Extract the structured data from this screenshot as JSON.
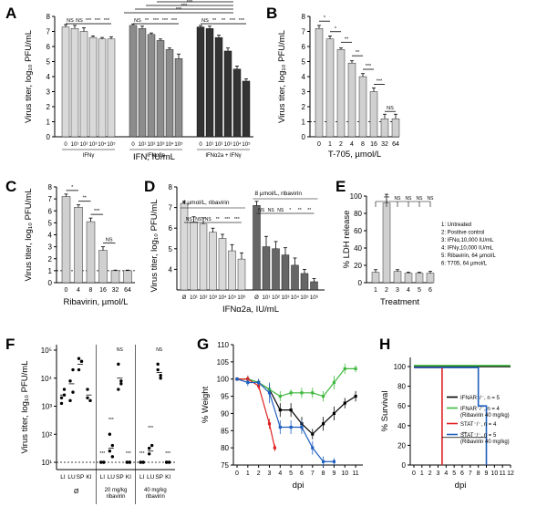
{
  "figure": {
    "panels": [
      {
        "id": "A",
        "letter": "A",
        "ylabel": "Virus titer, log₁₀ PFU/mL",
        "xlabel": "IFN, IU/mL"
      },
      {
        "id": "B",
        "letter": "B",
        "ylabel": "Virus titer, log₁₀ PFU/mL",
        "xlabel": "T-705, µmol/L"
      },
      {
        "id": "C",
        "letter": "C",
        "ylabel": "Virus titer, log₁₀ PFU/mL",
        "xlabel": "Ribavirin, µmol/L"
      },
      {
        "id": "D",
        "letter": "D",
        "ylabel": "Virus titer, log₁₀ PFU/mL",
        "xlabel": "IFNα2a, IU/mL"
      },
      {
        "id": "E",
        "letter": "E",
        "ylabel": "% LDH release",
        "xlabel": "Treatment"
      },
      {
        "id": "F",
        "letter": "F",
        "ylabel": "Virus titer, log₁₀ PFU/mL",
        "xlabel": ""
      },
      {
        "id": "G",
        "letter": "G",
        "ylabel": "% Weight",
        "xlabel": "dpi"
      },
      {
        "id": "H",
        "letter": "H",
        "ylabel": "% Survival",
        "xlabel": "dpi"
      }
    ]
  },
  "chart_data": [
    {
      "panel": "A",
      "type": "bar",
      "ylim": [
        0,
        8
      ],
      "yticks": [
        0,
        1,
        2,
        3,
        4,
        5,
        6,
        7,
        8
      ],
      "ylabel": "Virus titer, log₁₀ PFU/mL",
      "xlabel": "IFN, IU/mL",
      "groups": [
        {
          "name": "IFNγ",
          "color": "#d9d9d9",
          "categories": [
            "0",
            "10¹",
            "10²",
            "10³",
            "10⁴",
            "10⁵"
          ],
          "values": [
            7.3,
            7.2,
            7.0,
            6.6,
            6.5,
            6.5
          ],
          "errors": [
            0.15,
            0.2,
            0.25,
            0.1,
            0.1,
            0.15
          ]
        },
        {
          "name": "IFNα2a",
          "color": "#8c8c8c",
          "categories": [
            "0",
            "10¹",
            "10²",
            "10³",
            "10⁴",
            "10⁵"
          ],
          "values": [
            7.4,
            7.2,
            6.8,
            6.4,
            5.8,
            5.2
          ],
          "errors": [
            0.1,
            0.15,
            0.1,
            0.1,
            0.1,
            0.3
          ]
        },
        {
          "name": "IFNα2a + IFNγ",
          "color": "#333333",
          "categories": [
            "0",
            "10¹",
            "10²",
            "10³",
            "10⁴",
            "10⁵"
          ],
          "values": [
            7.3,
            7.2,
            6.6,
            5.7,
            4.5,
            3.7
          ],
          "errors": [
            0.1,
            0.15,
            0.15,
            0.2,
            0.2,
            0.15
          ]
        }
      ],
      "annotations": [
        "NS",
        "NS",
        "***",
        "***",
        "***",
        "NS",
        "**",
        "***",
        "***",
        "***",
        "NS",
        "**",
        "**",
        "***",
        "***",
        "***",
        "***",
        "***",
        "***",
        "***",
        "***"
      ]
    },
    {
      "panel": "B",
      "type": "bar",
      "ylim": [
        0,
        8
      ],
      "yticks": [
        0,
        1,
        2,
        3,
        4,
        5,
        6,
        7,
        8
      ],
      "ylabel": "Virus titer, log₁₀ PFU/mL",
      "xlabel": "T-705, µmol/L",
      "categories": [
        "0",
        "1",
        "2",
        "4",
        "8",
        "16",
        "32",
        "64"
      ],
      "values": [
        7.2,
        6.5,
        5.8,
        4.9,
        4.0,
        3.0,
        1.2,
        1.2
      ],
      "errors": [
        0.2,
        0.2,
        0.1,
        0.15,
        0.2,
        0.25,
        0.3,
        0.3
      ],
      "detection_limit": 1,
      "annotations": [
        "*",
        "*",
        "**",
        "**",
        "***",
        "***",
        "NS"
      ]
    },
    {
      "panel": "C",
      "type": "bar",
      "ylim": [
        0,
        8
      ],
      "yticks": [
        0,
        1,
        2,
        3,
        4,
        5,
        6,
        7,
        8
      ],
      "ylabel": "Virus titer, log₁₀ PFU/mL",
      "xlabel": "Ribavirin, µmol/L",
      "categories": [
        "0",
        "4",
        "8",
        "16",
        "32",
        "64"
      ],
      "values": [
        7.2,
        6.3,
        5.1,
        2.7,
        1.0,
        1.0
      ],
      "errors": [
        0.2,
        0.2,
        0.3,
        0.3,
        0.05,
        0.05
      ],
      "detection_limit": 1,
      "annotations": [
        "*",
        "**",
        "***",
        "NS"
      ]
    },
    {
      "panel": "D",
      "type": "bar",
      "ylim": [
        3,
        8
      ],
      "yticks": [
        4,
        5,
        6,
        7,
        8
      ],
      "ylabel": "Virus titer, log₁₀ PFU/mL",
      "xlabel": "IFNα2a, IU/mL",
      "groups": [
        {
          "name": "4 µmol/L, ribavirin",
          "color": "#d9d9d9",
          "categories": [
            "Ø",
            "10¹",
            "10²",
            "10³",
            "10⁴",
            "10⁵",
            "10⁶"
          ],
          "values": [
            7.2,
            6.3,
            6.2,
            5.8,
            5.5,
            4.9,
            4.5
          ],
          "errors": [
            0.1,
            0.25,
            0.3,
            0.2,
            0.2,
            0.3,
            0.3
          ]
        },
        {
          "name": "8 µmol/L, ribavirin",
          "color": "#666666",
          "categories": [
            "Ø",
            "10¹",
            "10²",
            "10³",
            "10⁴",
            "10⁵",
            "10⁶"
          ],
          "values": [
            7.1,
            5.1,
            5.0,
            4.7,
            4.2,
            3.8,
            3.4
          ],
          "errors": [
            0.2,
            0.5,
            0.35,
            0.35,
            0.35,
            0.2,
            0.15
          ]
        }
      ],
      "annotations": [
        "NS",
        "NS",
        "NS",
        "**",
        "***",
        "***",
        "NS",
        "NS",
        "NS",
        "*",
        "**",
        "**"
      ]
    },
    {
      "panel": "E",
      "type": "bar",
      "ylim": [
        0,
        100
      ],
      "yticks": [
        0,
        20,
        40,
        60,
        80,
        100
      ],
      "ylabel": "% LDH release",
      "xlabel": "Treatment",
      "categories": [
        "1",
        "2",
        "3",
        "4",
        "5",
        "6"
      ],
      "values": [
        12,
        92,
        13,
        11,
        11,
        11
      ],
      "errors": [
        3,
        10,
        2,
        1,
        1,
        2
      ],
      "legend": [
        "1: Untreated",
        "2: Positive control",
        "3: IFNα,10,000 IU/mL",
        "4: IFNγ,10,000 IU/mL",
        "5: Ribavirin, 64 µmol/L",
        "6: T705, 64 µmol/L"
      ],
      "annotations": [
        "***",
        "NS",
        "NS",
        "NS",
        "NS"
      ]
    },
    {
      "panel": "F",
      "type": "scatter",
      "ylim": [
        1,
        5
      ],
      "yticks": [
        "10¹",
        "10²",
        "10³",
        "10⁴",
        "10⁵"
      ],
      "ylabel": "Virus titer, log₁₀ PFU/mL",
      "groups": [
        "Ø",
        "20 mg/kg ribavirin",
        "40 mg/kg ribavirin"
      ],
      "tissue_labels": [
        "LI",
        "LU",
        "SP",
        "KI"
      ],
      "series": [
        {
          "group": "Ø",
          "tissue": "LI",
          "log_values": [
            3.3,
            3.6,
            3.1,
            3.4
          ],
          "mean": 3.4
        },
        {
          "group": "Ø",
          "tissue": "LU",
          "log_values": [
            3.9,
            4.3,
            3.2,
            3.5
          ],
          "mean": 3.8
        },
        {
          "group": "Ø",
          "tissue": "SP",
          "log_values": [
            4.7,
            4.6,
            4.3,
            4.6
          ],
          "mean": 4.5
        },
        {
          "group": "Ø",
          "tissue": "KI",
          "log_values": [
            3.6,
            3.2,
            3.3
          ],
          "mean": 3.4
        },
        {
          "group": "20 mg/kg ribavirin",
          "tissue": "LI",
          "log_values": [
            1.0,
            1.0,
            1.0,
            1.0
          ],
          "mean": 1.0
        },
        {
          "group": "20 mg/kg ribavirin",
          "tissue": "LU",
          "log_values": [
            2.0,
            1.6,
            1.4,
            1.2
          ],
          "mean": 1.5
        },
        {
          "group": "20 mg/kg ribavirin",
          "tissue": "SP",
          "log_values": [
            4.5,
            3.8,
            3.6,
            3.9
          ],
          "mean": 4.0
        },
        {
          "group": "20 mg/kg ribavirin",
          "tissue": "KI",
          "log_values": [
            1.0,
            1.0,
            1.0,
            1.0
          ],
          "mean": 1.0
        },
        {
          "group": "40 mg/kg ribavirin",
          "tissue": "LI",
          "log_values": [
            1.0,
            1.0,
            1.0,
            1.0
          ],
          "mean": 1.0
        },
        {
          "group": "40 mg/kg ribavirin",
          "tissue": "LU",
          "log_values": [
            1.3,
            1.6,
            1.5
          ],
          "mean": 1.4
        },
        {
          "group": "40 mg/kg ribavirin",
          "tissue": "SP",
          "log_values": [
            4.5,
            4.1,
            4.3,
            4.0
          ],
          "mean": 4.2
        },
        {
          "group": "40 mg/kg ribavirin",
          "tissue": "KI",
          "log_values": [
            1.0,
            1.0,
            1.0,
            1.0
          ],
          "mean": 1.0
        }
      ],
      "annotations": [
        "***",
        "***",
        "***",
        "***",
        "NS",
        "***",
        "***",
        "***",
        "***",
        "NS",
        "***"
      ]
    },
    {
      "panel": "G",
      "type": "line",
      "xlim": [
        0,
        11.5
      ],
      "xticks": [
        0,
        1,
        2,
        3,
        4,
        5,
        6,
        7,
        8,
        9,
        10,
        11
      ],
      "ylim": [
        75,
        110
      ],
      "yticks": [
        75,
        80,
        85,
        90,
        95,
        100,
        105,
        110
      ],
      "ylabel": "% Weight",
      "xlabel": "dpi",
      "series": [
        {
          "name": "IFNAR⁻/⁻",
          "color": "#000000",
          "x": [
            0,
            1,
            2,
            3,
            4,
            5,
            6,
            7,
            8,
            9,
            10,
            11
          ],
          "y": [
            100,
            100,
            99,
            97,
            91,
            91,
            87,
            84,
            87,
            90,
            93,
            95
          ],
          "errors": [
            0.5,
            1,
            1,
            1.5,
            2,
            2,
            2,
            1.5,
            2,
            2,
            1.5,
            1.5
          ]
        },
        {
          "name": "IFNAR⁻/⁻ (Ribavirin 40 mg/kg)",
          "color": "#3fb83f",
          "x": [
            0,
            1,
            2,
            3,
            4,
            5,
            6,
            7,
            8,
            9,
            10,
            11
          ],
          "y": [
            100,
            100,
            99,
            97,
            95,
            96,
            96,
            96,
            95,
            99,
            103,
            103
          ],
          "errors": [
            0.5,
            1,
            1,
            1.5,
            1.5,
            1,
            1.5,
            1.5,
            1.5,
            2,
            1.5,
            1
          ]
        },
        {
          "name": "STAT⁻/⁻",
          "color": "#e02020",
          "x": [
            0,
            1,
            2,
            3,
            3.5
          ],
          "y": [
            100,
            100,
            98,
            87,
            80
          ],
          "errors": [
            0.5,
            1,
            1,
            1.5,
            1
          ]
        },
        {
          "name": "STAT⁻/⁻ (Ribavirin 40 mg/kg)",
          "color": "#1f5fbf",
          "x": [
            0,
            1,
            2,
            3,
            4,
            5,
            6,
            7,
            8,
            9
          ],
          "y": [
            100,
            99,
            99,
            96,
            86,
            86,
            86,
            80,
            76,
            76
          ],
          "errors": [
            0.5,
            1,
            1,
            3,
            2,
            2,
            2,
            2,
            1.5,
            1
          ]
        }
      ]
    },
    {
      "panel": "H",
      "type": "line",
      "xlim": [
        0,
        12
      ],
      "xticks": [
        0,
        1,
        2,
        3,
        4,
        5,
        6,
        7,
        8,
        9,
        10,
        11,
        12
      ],
      "ylim": [
        0,
        100
      ],
      "yticks": [
        0,
        20,
        40,
        60,
        80,
        100
      ],
      "ylabel": "% Survival",
      "xlabel": "dpi",
      "series": [
        {
          "name": "IFNAR⁻/⁻, n = 5",
          "color": "#000000",
          "x": [
            0,
            12
          ],
          "y": [
            100,
            100
          ]
        },
        {
          "name": "IFNAR⁻/⁻, n = 4",
          "note": "(Ribavirin 40 mg/kg)",
          "color": "#3fb83f",
          "x": [
            0,
            12
          ],
          "y": [
            101,
            101
          ]
        },
        {
          "name": "STAT⁻/⁻, n = 4",
          "color": "#e02020",
          "x": [
            0,
            3.5,
            3.5
          ],
          "y": [
            99,
            99,
            0
          ]
        },
        {
          "name": "STAT⁻/⁻, n = 5",
          "note": "(Ribavirin 40 mg/kg)",
          "color": "#1f5fbf",
          "x": [
            0,
            8,
            8,
            9,
            9
          ],
          "y": [
            99,
            99,
            60,
            60,
            0
          ]
        }
      ],
      "annotations": [
        "**"
      ]
    }
  ]
}
